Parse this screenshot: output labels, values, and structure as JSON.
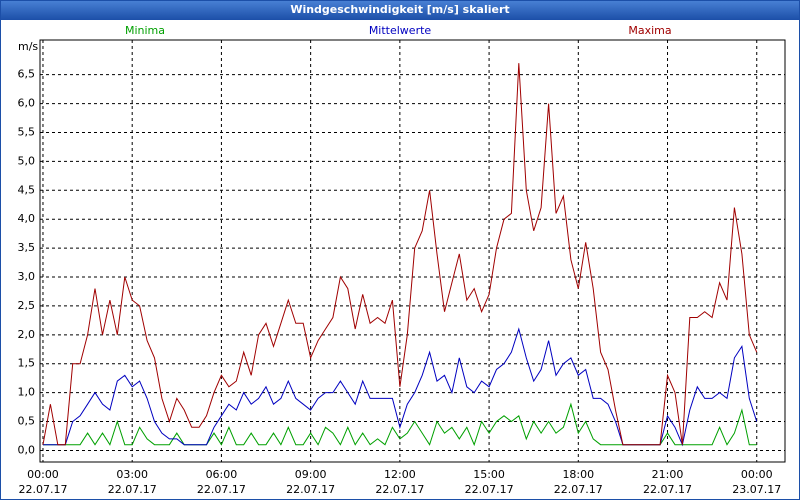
{
  "chart_data": {
    "type": "line",
    "title": "Windgeschwindigkeit [m/s] skaliert",
    "y_label": "m/s",
    "x": [
      0,
      0.25,
      0.5,
      0.75,
      1,
      1.25,
      1.5,
      1.75,
      2,
      2.25,
      2.5,
      2.75,
      3,
      3.25,
      3.5,
      3.75,
      4,
      4.25,
      4.5,
      4.75,
      5,
      5.25,
      5.5,
      5.75,
      6,
      6.25,
      6.5,
      6.75,
      7,
      7.25,
      7.5,
      7.75,
      8,
      8.25,
      8.5,
      8.75,
      9,
      9.25,
      9.5,
      9.75,
      10,
      10.25,
      10.5,
      10.75,
      11,
      11.25,
      11.5,
      11.75,
      12,
      12.25,
      12.5,
      12.75,
      13,
      13.25,
      13.5,
      13.75,
      14,
      14.25,
      14.5,
      14.75,
      15,
      15.25,
      15.5,
      15.75,
      16,
      16.25,
      16.5,
      16.75,
      17,
      17.25,
      17.5,
      17.75,
      18,
      18.25,
      18.5,
      18.75,
      19,
      19.25,
      19.5,
      19.75,
      20,
      20.25,
      20.5,
      20.75,
      21,
      21.25,
      21.5,
      21.75,
      22,
      22.25,
      22.5,
      22.75,
      23,
      23.25,
      23.5,
      23.75,
      24
    ],
    "series": [
      {
        "name": "Minima",
        "color": "#00a000",
        "values": [
          0.1,
          0.1,
          0.1,
          0.1,
          0.1,
          0.1,
          0.3,
          0.1,
          0.3,
          0.1,
          0.5,
          0.1,
          0.1,
          0.4,
          0.2,
          0.1,
          0.1,
          0.1,
          0.3,
          0.1,
          0.1,
          0.1,
          0.1,
          0.3,
          0.1,
          0.4,
          0.1,
          0.1,
          0.3,
          0.1,
          0.1,
          0.3,
          0.1,
          0.4,
          0.1,
          0.1,
          0.3,
          0.1,
          0.4,
          0.3,
          0.1,
          0.4,
          0.1,
          0.3,
          0.1,
          0.2,
          0.1,
          0.4,
          0.2,
          0.3,
          0.5,
          0.3,
          0.1,
          0.5,
          0.3,
          0.4,
          0.2,
          0.4,
          0.1,
          0.5,
          0.3,
          0.5,
          0.6,
          0.5,
          0.6,
          0.2,
          0.5,
          0.3,
          0.5,
          0.3,
          0.4,
          0.8,
          0.3,
          0.5,
          0.2,
          0.1,
          0.1,
          0.1,
          0.1,
          0.1,
          0.1,
          0.1,
          0.1,
          0.1,
          0.3,
          0.1,
          0.1,
          0.1,
          0.1,
          0.1,
          0.1,
          0.4,
          0.1,
          0.3,
          0.7,
          0.1,
          0.1
        ]
      },
      {
        "name": "Mittelwerte",
        "color": "#0000c0",
        "values": [
          0.1,
          0.1,
          0.1,
          0.1,
          0.5,
          0.6,
          0.8,
          1.0,
          0.8,
          0.7,
          1.2,
          1.3,
          1.1,
          1.2,
          0.9,
          0.5,
          0.3,
          0.2,
          0.2,
          0.1,
          0.1,
          0.1,
          0.1,
          0.4,
          0.6,
          0.8,
          0.7,
          1.0,
          0.8,
          0.9,
          1.1,
          0.8,
          0.9,
          1.2,
          0.9,
          0.8,
          0.7,
          0.9,
          1.0,
          1.0,
          1.2,
          1.0,
          0.8,
          1.2,
          0.9,
          0.9,
          0.9,
          0.9,
          0.4,
          0.8,
          1.0,
          1.3,
          1.7,
          1.2,
          1.3,
          1.0,
          1.6,
          1.1,
          1.0,
          1.2,
          1.1,
          1.4,
          1.5,
          1.7,
          2.1,
          1.6,
          1.2,
          1.4,
          1.9,
          1.3,
          1.5,
          1.6,
          1.3,
          1.4,
          0.9,
          0.9,
          0.8,
          0.5,
          0.1,
          0.1,
          0.1,
          0.1,
          0.1,
          0.1,
          0.6,
          0.4,
          0.1,
          0.7,
          1.1,
          0.9,
          0.9,
          1.0,
          0.9,
          1.6,
          1.8,
          0.9,
          0.5
        ]
      },
      {
        "name": "Maxima",
        "color": "#a00000",
        "values": [
          0.1,
          0.8,
          0.1,
          0.1,
          1.5,
          1.5,
          2.0,
          2.8,
          2.0,
          2.6,
          2.0,
          3.0,
          2.6,
          2.5,
          1.9,
          1.6,
          0.9,
          0.5,
          0.9,
          0.7,
          0.4,
          0.4,
          0.6,
          1.0,
          1.3,
          1.1,
          1.2,
          1.7,
          1.3,
          2.0,
          2.2,
          1.8,
          2.2,
          2.6,
          2.2,
          2.2,
          1.6,
          1.9,
          2.1,
          2.3,
          3.0,
          2.8,
          2.1,
          2.7,
          2.2,
          2.3,
          2.2,
          2.6,
          1.1,
          2.0,
          3.5,
          3.8,
          4.5,
          3.4,
          2.4,
          2.9,
          3.4,
          2.6,
          2.8,
          2.4,
          2.7,
          3.5,
          4.0,
          4.1,
          6.7,
          4.5,
          3.8,
          4.2,
          6.0,
          4.1,
          4.4,
          3.3,
          2.8,
          3.6,
          2.8,
          1.7,
          1.4,
          0.7,
          0.1,
          0.1,
          0.1,
          0.1,
          0.1,
          0.1,
          1.3,
          1.0,
          0.1,
          2.3,
          2.3,
          2.4,
          2.3,
          2.9,
          2.6,
          4.2,
          3.4,
          2.0,
          1.7
        ]
      }
    ],
    "xlim": [
      -0.1,
      24.95
    ],
    "xticks": [
      {
        "value": 0,
        "label": "00:00",
        "date": "22.07.17"
      },
      {
        "value": 3,
        "label": "03:00",
        "date": "22.07.17"
      },
      {
        "value": 6,
        "label": "06:00",
        "date": "22.07.17"
      },
      {
        "value": 9,
        "label": "09:00",
        "date": "22.07.17"
      },
      {
        "value": 12,
        "label": "12:00",
        "date": "22.07.17"
      },
      {
        "value": 15,
        "label": "15:00",
        "date": "22.07.17"
      },
      {
        "value": 18,
        "label": "18:00",
        "date": "22.07.17"
      },
      {
        "value": 21,
        "label": "21:00",
        "date": "22.07.17"
      },
      {
        "value": 24,
        "label": "00:00",
        "date": "23.07.17"
      }
    ],
    "ylim": [
      -0.2,
      7.1
    ],
    "yticks": [
      {
        "value": 0,
        "label": "0,0"
      },
      {
        "value": 0.5,
        "label": "0,5"
      },
      {
        "value": 1,
        "label": "1,0"
      },
      {
        "value": 1.5,
        "label": "1,5"
      },
      {
        "value": 2,
        "label": "2,0"
      },
      {
        "value": 2.5,
        "label": "2,5"
      },
      {
        "value": 3,
        "label": "3,0"
      },
      {
        "value": 3.5,
        "label": "3,5"
      },
      {
        "value": 4,
        "label": "4,0"
      },
      {
        "value": 4.5,
        "label": "4,5"
      },
      {
        "value": 5,
        "label": "5,0"
      },
      {
        "value": 5.5,
        "label": "5,5"
      },
      {
        "value": 6,
        "label": "6,0"
      },
      {
        "value": 6.5,
        "label": "6,5"
      }
    ],
    "grid": true
  }
}
